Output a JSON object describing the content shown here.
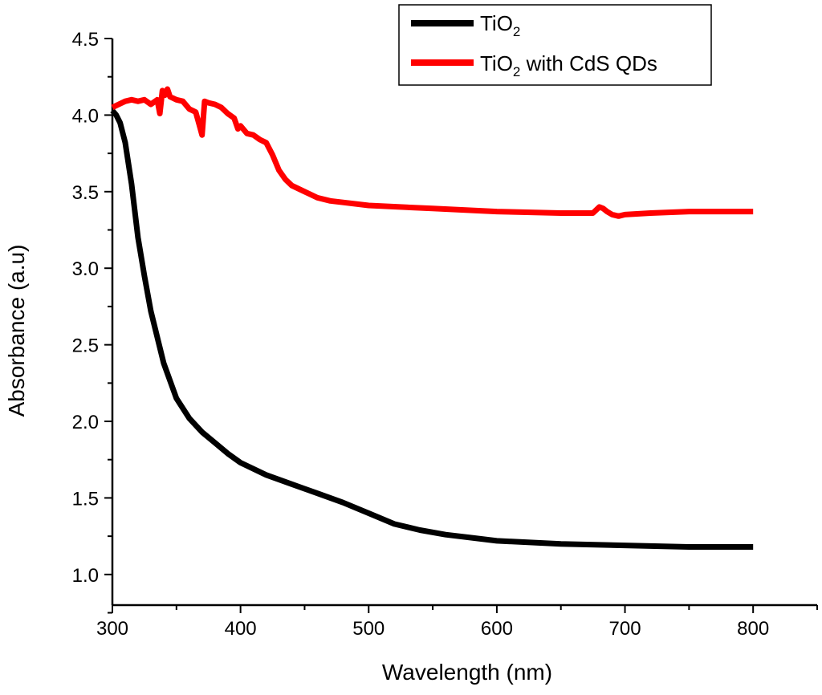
{
  "chart_data": {
    "type": "line",
    "title": "",
    "xlabel": "Wavelength (nm)",
    "ylabel": "Absorbance (a.u)",
    "xlim": [
      300,
      850
    ],
    "ylim": [
      0.8,
      4.5
    ],
    "xticks": [
      300,
      400,
      500,
      600,
      700,
      800
    ],
    "xtick_labels": [
      "300",
      "400",
      "500",
      "600",
      "700",
      "800"
    ],
    "yticks": [
      1.0,
      1.5,
      2.0,
      2.5,
      3.0,
      3.5,
      4.0,
      4.5
    ],
    "ytick_labels": [
      "1.0",
      "1.5",
      "2.0",
      "2.5",
      "3.0",
      "3.5",
      "4.0",
      "4.5"
    ],
    "grid": false,
    "legend_position": "top-right",
    "series": [
      {
        "name": "TiO2",
        "label_main": "TiO",
        "label_sub": "2",
        "label_rest": "",
        "color": "#000000",
        "x": [
          300,
          303,
          306,
          310,
          315,
          320,
          325,
          330,
          340,
          350,
          360,
          370,
          380,
          390,
          400,
          420,
          440,
          460,
          480,
          500,
          520,
          540,
          560,
          580,
          600,
          650,
          700,
          750,
          800
        ],
        "y": [
          4.03,
          4.0,
          3.95,
          3.82,
          3.55,
          3.2,
          2.95,
          2.72,
          2.38,
          2.15,
          2.02,
          1.93,
          1.86,
          1.79,
          1.73,
          1.65,
          1.59,
          1.53,
          1.47,
          1.4,
          1.33,
          1.29,
          1.26,
          1.24,
          1.22,
          1.2,
          1.19,
          1.18,
          1.18
        ]
      },
      {
        "name": "TiO2 with CdS QDs",
        "label_main": "TiO",
        "label_sub": "2",
        "label_rest": " with CdS QDs",
        "color": "#ff0000",
        "x": [
          300,
          305,
          310,
          315,
          320,
          325,
          330,
          335,
          337,
          339,
          341,
          343,
          345,
          350,
          355,
          360,
          365,
          368,
          370,
          372,
          375,
          380,
          385,
          390,
          395,
          398,
          400,
          405,
          410,
          415,
          420,
          425,
          430,
          435,
          440,
          450,
          460,
          470,
          480,
          500,
          550,
          600,
          650,
          675,
          680,
          683,
          686,
          690,
          695,
          700,
          720,
          750,
          800
        ],
        "y": [
          4.05,
          4.07,
          4.09,
          4.1,
          4.09,
          4.1,
          4.07,
          4.1,
          4.01,
          4.16,
          4.13,
          4.17,
          4.12,
          4.1,
          4.09,
          4.04,
          4.02,
          3.93,
          3.87,
          4.09,
          4.08,
          4.07,
          4.05,
          4.01,
          3.98,
          3.91,
          3.93,
          3.88,
          3.87,
          3.84,
          3.82,
          3.74,
          3.64,
          3.58,
          3.54,
          3.5,
          3.46,
          3.44,
          3.43,
          3.41,
          3.39,
          3.37,
          3.36,
          3.36,
          3.4,
          3.39,
          3.37,
          3.35,
          3.34,
          3.35,
          3.36,
          3.37,
          3.37
        ]
      }
    ]
  }
}
